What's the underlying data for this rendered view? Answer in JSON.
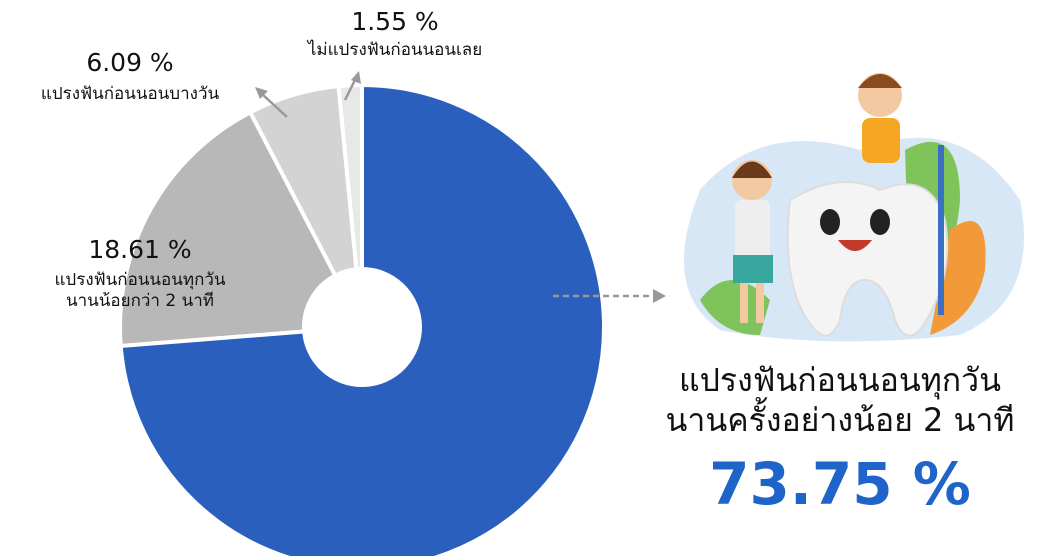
{
  "chart_data": {
    "type": "pie",
    "categories": [
      "แปรงฟันก่อนนอนทุกวัน\nนานครั้งอย่างน้อย 2 นาที",
      "แปรงฟันก่อนนอนทุกวัน\nนานน้อยกว่า 2 นาที",
      "แปรงฟันก่อนนอนบางวัน",
      "ไม่แปรงฟันก่อนนอนเลย"
    ],
    "values": [
      73.75,
      18.61,
      6.09,
      1.55
    ],
    "value_labels": [
      "73.75 %",
      "18.61 %",
      "6.09 %",
      "1.55 %"
    ],
    "colors": [
      "#2a5fbe",
      "#b8b8b8",
      "#d3d3d3",
      "#e8e8e8"
    ]
  }
}
